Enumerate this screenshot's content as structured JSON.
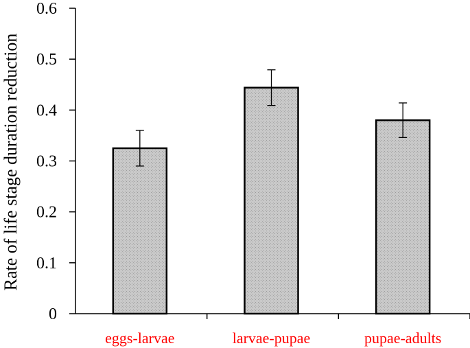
{
  "chart_data": {
    "type": "bar",
    "title": "",
    "xlabel": "",
    "ylabel": "Rate of life stage duration reduction",
    "categories": [
      "eggs-larvae",
      "larvae-pupae",
      "pupae-adults"
    ],
    "values": [
      0.325,
      0.444,
      0.38
    ],
    "errors": [
      0.035,
      0.035,
      0.034
    ],
    "ylim": [
      0,
      0.6
    ],
    "yticks": [
      0,
      0.1,
      0.2,
      0.3,
      0.4,
      0.5,
      0.6
    ],
    "ytick_labels": [
      "0",
      "0.1",
      "0.2",
      "0.3",
      "0.4",
      "0.5",
      "0.6"
    ],
    "grid": false,
    "legend": "none"
  },
  "colors": {
    "bar_fill": "#c4c4c4",
    "bar_stroke": "#000000",
    "category_label": "#ff0000",
    "axis": "#000000"
  }
}
